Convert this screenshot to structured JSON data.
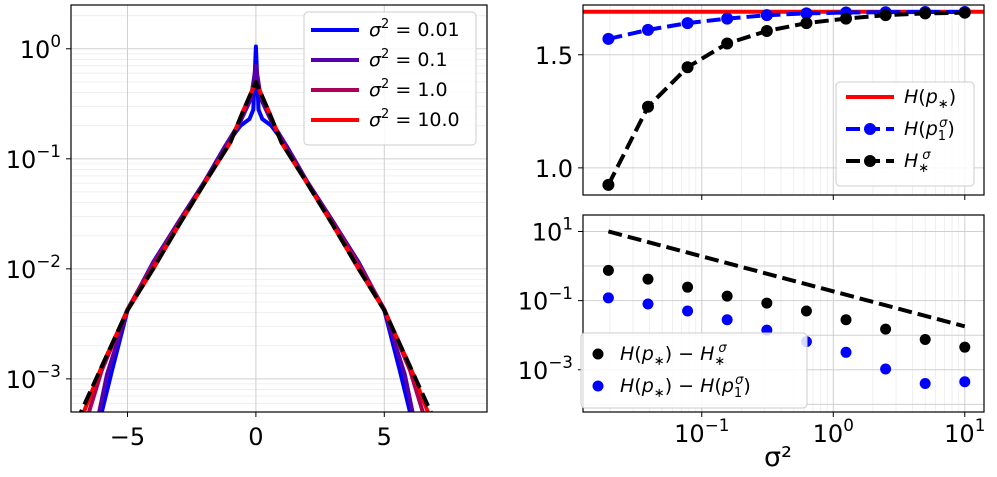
{
  "figure": {
    "colors": {
      "s001": "#0000ff",
      "s01": "#5500aa",
      "s1": "#aa0055",
      "s10": "#ff0000",
      "grid": "#d0d0d0",
      "minor_grid": "#ececec"
    }
  },
  "chart_data": [
    {
      "id": "density",
      "type": "line",
      "xlim": [
        -7.2,
        9
      ],
      "ylim": [
        0.0005,
        2.5
      ],
      "yscale": "log",
      "xticks": [
        -5,
        0,
        5
      ],
      "xtick_labels": [
        "−5",
        "0",
        "5"
      ],
      "yticks": [
        0.001,
        0.01,
        0.1,
        1
      ],
      "ytick_labels": [
        {
          "base": "10",
          "exp": "−3"
        },
        {
          "base": "10",
          "exp": "−2"
        },
        {
          "base": "10",
          "exp": "−1"
        },
        {
          "base": "10",
          "exp": "0"
        }
      ],
      "grid": true,
      "legend": {
        "loc": "upper right",
        "entries": [
          {
            "label": "σ² = 0.01",
            "lhs": "σ",
            "sup": "2",
            "rhs": " = 0.01",
            "color": "#0000ff"
          },
          {
            "label": "σ² = 0.1",
            "lhs": "σ",
            "sup": "2",
            "rhs": " = 0.1",
            "color": "#5500aa"
          },
          {
            "label": "σ² = 1.0",
            "lhs": "σ",
            "sup": "2",
            "rhs": " = 1.0",
            "color": "#aa0055"
          },
          {
            "label": "σ² = 10.0",
            "lhs": "σ",
            "sup": "2",
            "rhs": " = 10.0",
            "color": "#ff0000"
          }
        ]
      },
      "series": [
        {
          "name": "σ² = 0.01",
          "color": "#0000ff",
          "dashed": false,
          "x": [
            -6,
            -5.6,
            -5,
            -4,
            -3,
            -2,
            -1.2,
            -0.6,
            -0.25,
            -0.1,
            0,
            0.1,
            0.25,
            0.6,
            1.2,
            2,
            3,
            4,
            5,
            5.6,
            6
          ],
          "y": [
            0.0005,
            0.0012,
            0.0042,
            0.0115,
            0.027,
            0.062,
            0.13,
            0.2,
            0.23,
            0.28,
            1.05,
            0.28,
            0.23,
            0.2,
            0.13,
            0.062,
            0.027,
            0.0115,
            0.0042,
            0.0012,
            0.0005
          ]
        },
        {
          "name": "σ² = 0.1",
          "color": "#5500aa",
          "dashed": false,
          "x": [
            -6.1,
            -5.8,
            -5,
            -4,
            -3,
            -2,
            -1.2,
            -0.6,
            -0.2,
            0,
            0.2,
            0.6,
            1.2,
            2,
            3,
            4,
            5,
            5.8,
            6.1
          ],
          "y": [
            0.0005,
            0.0011,
            0.0042,
            0.0112,
            0.027,
            0.062,
            0.13,
            0.22,
            0.35,
            0.7,
            0.35,
            0.22,
            0.13,
            0.062,
            0.027,
            0.0112,
            0.0042,
            0.0011,
            0.0005
          ]
        },
        {
          "name": "σ² = 1.0",
          "color": "#aa0055",
          "dashed": false,
          "x": [
            -6.5,
            -6,
            -5,
            -4,
            -3,
            -2,
            -1,
            -0.5,
            0,
            0.5,
            1,
            2,
            3,
            4,
            5,
            6,
            6.5
          ],
          "y": [
            0.0005,
            0.0012,
            0.0043,
            0.011,
            0.026,
            0.06,
            0.14,
            0.27,
            0.5,
            0.27,
            0.14,
            0.06,
            0.026,
            0.011,
            0.0043,
            0.0012,
            0.0005
          ]
        },
        {
          "name": "σ² = 10.0",
          "color": "#ff0000",
          "dashed": false,
          "x": [
            -6.7,
            -6,
            -5,
            -4,
            -3,
            -2,
            -1,
            -0.5,
            0,
            0.5,
            1,
            2,
            3,
            4,
            5,
            6,
            6.7
          ],
          "y": [
            0.0005,
            0.0013,
            0.0042,
            0.01,
            0.025,
            0.06,
            0.14,
            0.27,
            0.5,
            0.27,
            0.14,
            0.06,
            0.025,
            0.01,
            0.0042,
            0.0013,
            0.0005
          ]
        },
        {
          "name": "reference",
          "color": "#000000",
          "dashed": true,
          "x": [
            -7,
            -6,
            -5,
            -4,
            -3,
            -2,
            -1,
            -0.5,
            0,
            0.5,
            1,
            2,
            3,
            4,
            5,
            6,
            7
          ],
          "y": [
            0.0004,
            0.0013,
            0.0042,
            0.01,
            0.025,
            0.06,
            0.14,
            0.27,
            0.5,
            0.27,
            0.14,
            0.06,
            0.025,
            0.01,
            0.0042,
            0.0013,
            0.0004
          ]
        }
      ]
    },
    {
      "id": "entropy",
      "type": "line",
      "xscale": "log",
      "xlim": [
        0.0125,
        14
      ],
      "ylim": [
        0.88,
        1.72
      ],
      "yticks": [
        1.0,
        1.5
      ],
      "ytick_labels": [
        "1.0",
        "1.5"
      ],
      "grid": true,
      "legend": {
        "loc": "lower right",
        "entries": [
          {
            "label": "H(p∗)",
            "color": "#ff0000",
            "marker": false,
            "dashed": false
          },
          {
            "label": "H(p₁σ)",
            "color": "#0000ff",
            "marker": true,
            "dashed": true
          },
          {
            "label": "H∗σ",
            "color": "#000000",
            "marker": true,
            "dashed": true
          }
        ]
      },
      "x": [
        0.0195,
        0.039,
        0.078,
        0.156,
        0.3125,
        0.625,
        1.25,
        2.5,
        5,
        10
      ],
      "series": [
        {
          "name": "H(p∗)",
          "color": "#ff0000",
          "marker": false,
          "dashed": false,
          "values": [
            1.69,
            1.69,
            1.69,
            1.69,
            1.69,
            1.69,
            1.69,
            1.69,
            1.69,
            1.69
          ]
        },
        {
          "name": "H(p₁σ)",
          "color": "#0000ff",
          "marker": true,
          "dashed": true,
          "values": [
            1.57,
            1.61,
            1.64,
            1.66,
            1.675,
            1.683,
            1.687,
            1.688,
            1.689,
            1.689
          ]
        },
        {
          "name": "H∗σ",
          "color": "#000000",
          "marker": true,
          "dashed": true,
          "values": [
            0.925,
            1.27,
            1.445,
            1.55,
            1.605,
            1.64,
            1.66,
            1.675,
            1.683,
            1.686
          ]
        }
      ]
    },
    {
      "id": "gap",
      "type": "scatter",
      "xscale": "log",
      "yscale": "log",
      "xlim": [
        0.0125,
        14
      ],
      "ylim": [
        6e-05,
        30
      ],
      "xticks": [
        0.1,
        1,
        10
      ],
      "xtick_labels": [
        {
          "base": "10",
          "exp": "−1"
        },
        {
          "base": "10",
          "exp": "0"
        },
        {
          "base": "10",
          "exp": "1"
        }
      ],
      "yticks": [
        0.001,
        0.1,
        10
      ],
      "ytick_labels": [
        {
          "base": "10",
          "exp": "−3"
        },
        {
          "base": "10",
          "exp": "−1"
        },
        {
          "base": "10",
          "exp": "1"
        }
      ],
      "xlabel": "σ²",
      "grid": true,
      "legend": {
        "loc": "lower left",
        "entries": [
          {
            "label": "H(p∗) − H∗σ",
            "color": "#000000"
          },
          {
            "label": "H(p∗) − H(p₁σ)",
            "color": "#0000ff"
          }
        ]
      },
      "x": [
        0.0195,
        0.039,
        0.078,
        0.156,
        0.3125,
        0.625,
        1.25,
        2.5,
        5,
        10
      ],
      "series": [
        {
          "name": "H(p∗) − H∗σ",
          "color": "#000000",
          "values": [
            0.75,
            0.42,
            0.245,
            0.135,
            0.085,
            0.05,
            0.028,
            0.015,
            0.0075,
            0.0045
          ]
        },
        {
          "name": "H(p∗) − H(p₁σ)",
          "color": "#0000ff",
          "values": [
            0.12,
            0.08,
            0.05,
            0.028,
            0.014,
            0.0065,
            0.0032,
            0.00105,
            0.0004,
            0.00045
          ]
        }
      ],
      "reference_line": {
        "x": [
          0.0195,
          10
        ],
        "y": [
          10,
          0.018
        ],
        "color": "#000000",
        "dashed": true
      }
    }
  ]
}
